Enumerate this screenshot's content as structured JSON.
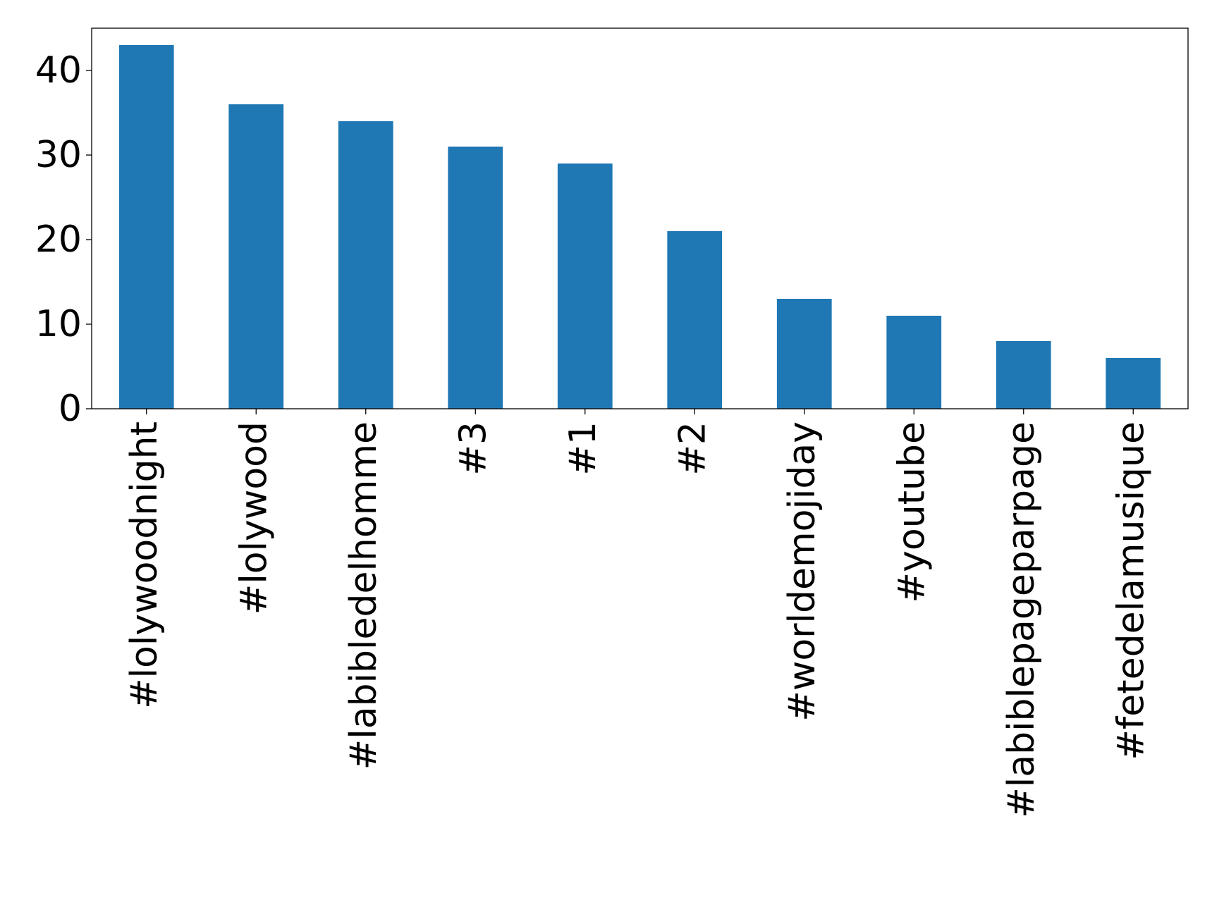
{
  "chart_data": {
    "type": "bar",
    "categories": [
      "#lolywoodnight",
      "#lolywood",
      "#labibledelhomme",
      "#3",
      "#1",
      "#2",
      "#worldemojiday",
      "#youtube",
      "#labiblepageparpage",
      "#fetedelamusique"
    ],
    "values": [
      43,
      36,
      34,
      31,
      29,
      21,
      13,
      11,
      8,
      6
    ],
    "ylim": [
      0,
      45
    ],
    "yticks": [
      0,
      10,
      20,
      30,
      40
    ],
    "title": "",
    "xlabel": "",
    "ylabel": "",
    "grid": false,
    "bar_color": "#1f77b4"
  }
}
